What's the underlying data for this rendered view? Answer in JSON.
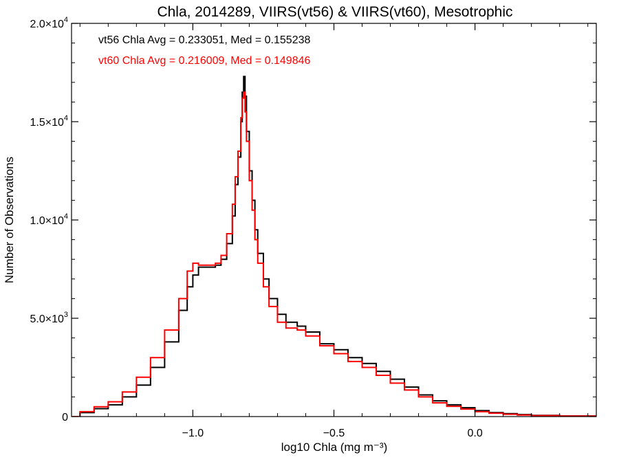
{
  "chart_data": {
    "type": "line",
    "title": "Chla, 2014289, VIIRS(vt56) & VIIRS(vt60), Mesotrophic",
    "xlabel": "log10 Chla (mg m⁻³)",
    "ylabel": "Number of Observations",
    "xlim": [
      -1.43,
      0.43
    ],
    "ylim": [
      0,
      20000
    ],
    "grid": false,
    "x_ticks": [
      {
        "value": -1.0,
        "label": "−1.0"
      },
      {
        "value": -0.5,
        "label": "−0.5"
      },
      {
        "value": 0.0,
        "label": "0.0"
      }
    ],
    "y_ticks": [
      {
        "value": 0,
        "mant": "0",
        "exp": ""
      },
      {
        "value": 5000,
        "mant": "5.0×10",
        "exp": "3"
      },
      {
        "value": 10000,
        "mant": "1.0×10",
        "exp": "4"
      },
      {
        "value": 15000,
        "mant": "1.5×10",
        "exp": "4"
      },
      {
        "value": 20000,
        "mant": "2.0×10",
        "exp": "4"
      }
    ],
    "annotations": [
      {
        "text": "vt56 Chla Avg = 0.233051, Med = 0.155238",
        "color": "#000000"
      },
      {
        "text": "vt60 Chla Avg = 0.216009, Med = 0.149846",
        "color": "#ff0000"
      }
    ],
    "series": [
      {
        "name": "vt56",
        "color": "#000000",
        "style": "step",
        "points": [
          [
            -1.43,
            0
          ],
          [
            -1.4,
            200
          ],
          [
            -1.35,
            400
          ],
          [
            -1.3,
            600
          ],
          [
            -1.25,
            1000
          ],
          [
            -1.2,
            1600
          ],
          [
            -1.15,
            2500
          ],
          [
            -1.1,
            3800
          ],
          [
            -1.05,
            5400
          ],
          [
            -1.02,
            6600
          ],
          [
            -1.0,
            7200
          ],
          [
            -0.98,
            7600
          ],
          [
            -0.95,
            7600
          ],
          [
            -0.92,
            7700
          ],
          [
            -0.9,
            8000
          ],
          [
            -0.88,
            8800
          ],
          [
            -0.86,
            10200
          ],
          [
            -0.85,
            11800
          ],
          [
            -0.84,
            13200
          ],
          [
            -0.83,
            15000
          ],
          [
            -0.825,
            16500
          ],
          [
            -0.82,
            17300
          ],
          [
            -0.815,
            16300
          ],
          [
            -0.81,
            14500
          ],
          [
            -0.8,
            12500
          ],
          [
            -0.79,
            11000
          ],
          [
            -0.78,
            9500
          ],
          [
            -0.77,
            8300
          ],
          [
            -0.75,
            7000
          ],
          [
            -0.73,
            6000
          ],
          [
            -0.7,
            5200
          ],
          [
            -0.67,
            4800
          ],
          [
            -0.63,
            4600
          ],
          [
            -0.6,
            4300
          ],
          [
            -0.55,
            3700
          ],
          [
            -0.5,
            3400
          ],
          [
            -0.45,
            3000
          ],
          [
            -0.4,
            2700
          ],
          [
            -0.35,
            2300
          ],
          [
            -0.3,
            1900
          ],
          [
            -0.25,
            1500
          ],
          [
            -0.2,
            1100
          ],
          [
            -0.15,
            800
          ],
          [
            -0.1,
            600
          ],
          [
            -0.05,
            450
          ],
          [
            0.0,
            300
          ],
          [
            0.05,
            200
          ],
          [
            0.1,
            150
          ],
          [
            0.15,
            100
          ],
          [
            0.2,
            60
          ],
          [
            0.3,
            30
          ],
          [
            0.43,
            0
          ]
        ]
      },
      {
        "name": "vt60",
        "color": "#ff0000",
        "style": "step",
        "points": [
          [
            -1.43,
            0
          ],
          [
            -1.4,
            250
          ],
          [
            -1.35,
            500
          ],
          [
            -1.3,
            750
          ],
          [
            -1.25,
            1250
          ],
          [
            -1.2,
            2000
          ],
          [
            -1.15,
            3000
          ],
          [
            -1.1,
            4400
          ],
          [
            -1.05,
            6000
          ],
          [
            -1.02,
            7400
          ],
          [
            -1.0,
            7800
          ],
          [
            -0.98,
            7700
          ],
          [
            -0.95,
            7700
          ],
          [
            -0.92,
            7800
          ],
          [
            -0.9,
            8200
          ],
          [
            -0.88,
            9300
          ],
          [
            -0.86,
            10800
          ],
          [
            -0.85,
            12200
          ],
          [
            -0.84,
            13500
          ],
          [
            -0.83,
            15200
          ],
          [
            -0.825,
            16200
          ],
          [
            -0.82,
            16500
          ],
          [
            -0.815,
            15500
          ],
          [
            -0.81,
            14000
          ],
          [
            -0.8,
            12000
          ],
          [
            -0.79,
            10500
          ],
          [
            -0.78,
            9000
          ],
          [
            -0.77,
            7800
          ],
          [
            -0.75,
            6600
          ],
          [
            -0.73,
            5600
          ],
          [
            -0.7,
            4800
          ],
          [
            -0.67,
            4500
          ],
          [
            -0.63,
            4400
          ],
          [
            -0.6,
            4100
          ],
          [
            -0.55,
            3600
          ],
          [
            -0.5,
            3200
          ],
          [
            -0.45,
            2800
          ],
          [
            -0.4,
            2500
          ],
          [
            -0.35,
            2100
          ],
          [
            -0.3,
            1700
          ],
          [
            -0.25,
            1350
          ],
          [
            -0.2,
            1000
          ],
          [
            -0.15,
            700
          ],
          [
            -0.1,
            520
          ],
          [
            -0.05,
            380
          ],
          [
            0.0,
            250
          ],
          [
            0.05,
            170
          ],
          [
            0.1,
            120
          ],
          [
            0.15,
            80
          ],
          [
            0.2,
            50
          ],
          [
            0.3,
            25
          ],
          [
            0.43,
            0
          ]
        ]
      }
    ]
  }
}
